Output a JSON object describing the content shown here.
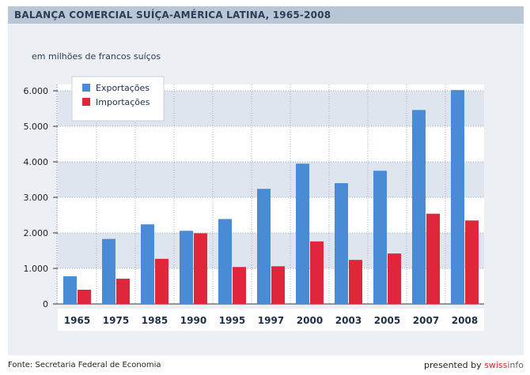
{
  "header": {
    "title": "BALANÇA COMERCIAL SUÍÇA-AMÉRICA LATINA, 1965-2008"
  },
  "chart_data": {
    "type": "bar",
    "title": "BALANÇA COMERCIAL SUÍÇA-AMÉRICA LATINA, 1965-2008",
    "subtitle": "em milhões de francos suíços",
    "categories": [
      "1965",
      "1975",
      "1985",
      "1990",
      "1995",
      "1997",
      "2000",
      "2003",
      "2005",
      "2007",
      "2008"
    ],
    "series": [
      {
        "name": "Exportações",
        "color": "#4a8bd6",
        "values": [
          780,
          1830,
          2240,
          2060,
          2390,
          3240,
          3950,
          3400,
          3750,
          5460,
          6020
        ]
      },
      {
        "name": "Importações",
        "color": "#e0263a",
        "values": [
          400,
          710,
          1270,
          1990,
          1040,
          1060,
          1760,
          1240,
          1420,
          2540,
          2350
        ]
      }
    ],
    "yticks": [
      0,
      1000,
      2000,
      3000,
      4000,
      5000,
      6000
    ],
    "ytick_labels": [
      "0",
      "1.000",
      "2.000",
      "3.000",
      "4.000",
      "5.000",
      "6.000"
    ],
    "ylim": [
      0,
      6000
    ],
    "grid": true,
    "legend": "top-left"
  },
  "footer": {
    "source": "Fonte: Secretaria Federal de Economia",
    "presented_by": "presented by",
    "brand_swiss": "swiss",
    "brand_info": "info"
  }
}
